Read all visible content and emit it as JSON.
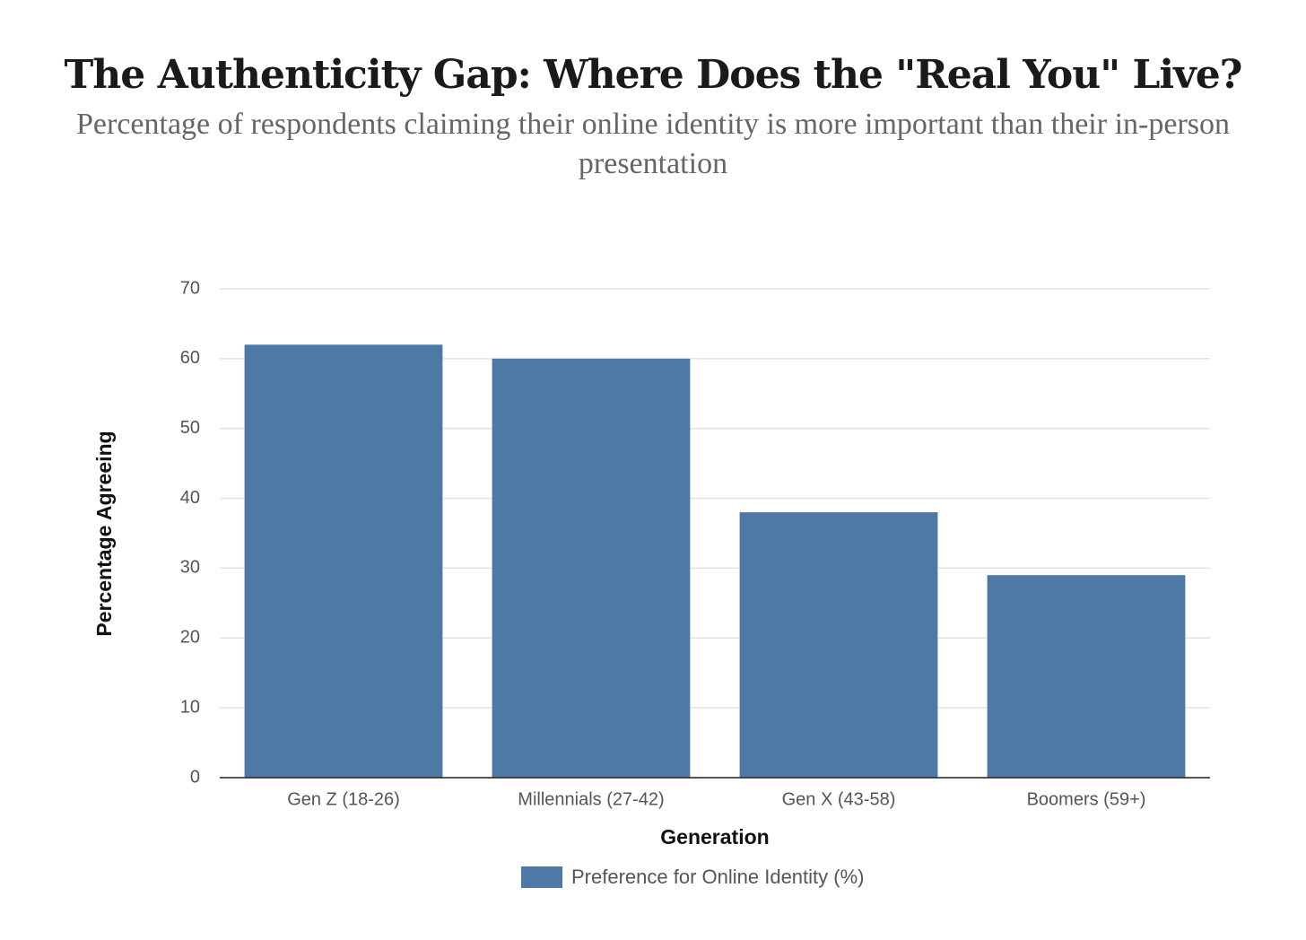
{
  "chart_data": {
    "type": "bar",
    "title": "The Authenticity Gap: Where Does the \"Real You\" Live?",
    "subtitle": "Percentage of respondents claiming their online identity is more important than their in-person presentation",
    "x_label": "Generation",
    "y_label": "Percentage Agreeing",
    "categories": [
      "Gen Z (18-26)",
      "Millennials (27-42)",
      "Gen X (43-58)",
      "Boomers (59+)"
    ],
    "series": [
      {
        "name": "Preference for Online Identity (%)",
        "color": "#4e79a7",
        "values": [
          62,
          60,
          38,
          29
        ]
      }
    ],
    "ylim": [
      0,
      70
    ],
    "yticks": [
      0,
      10,
      20,
      30,
      40,
      50,
      60,
      70
    ],
    "grid": true
  }
}
